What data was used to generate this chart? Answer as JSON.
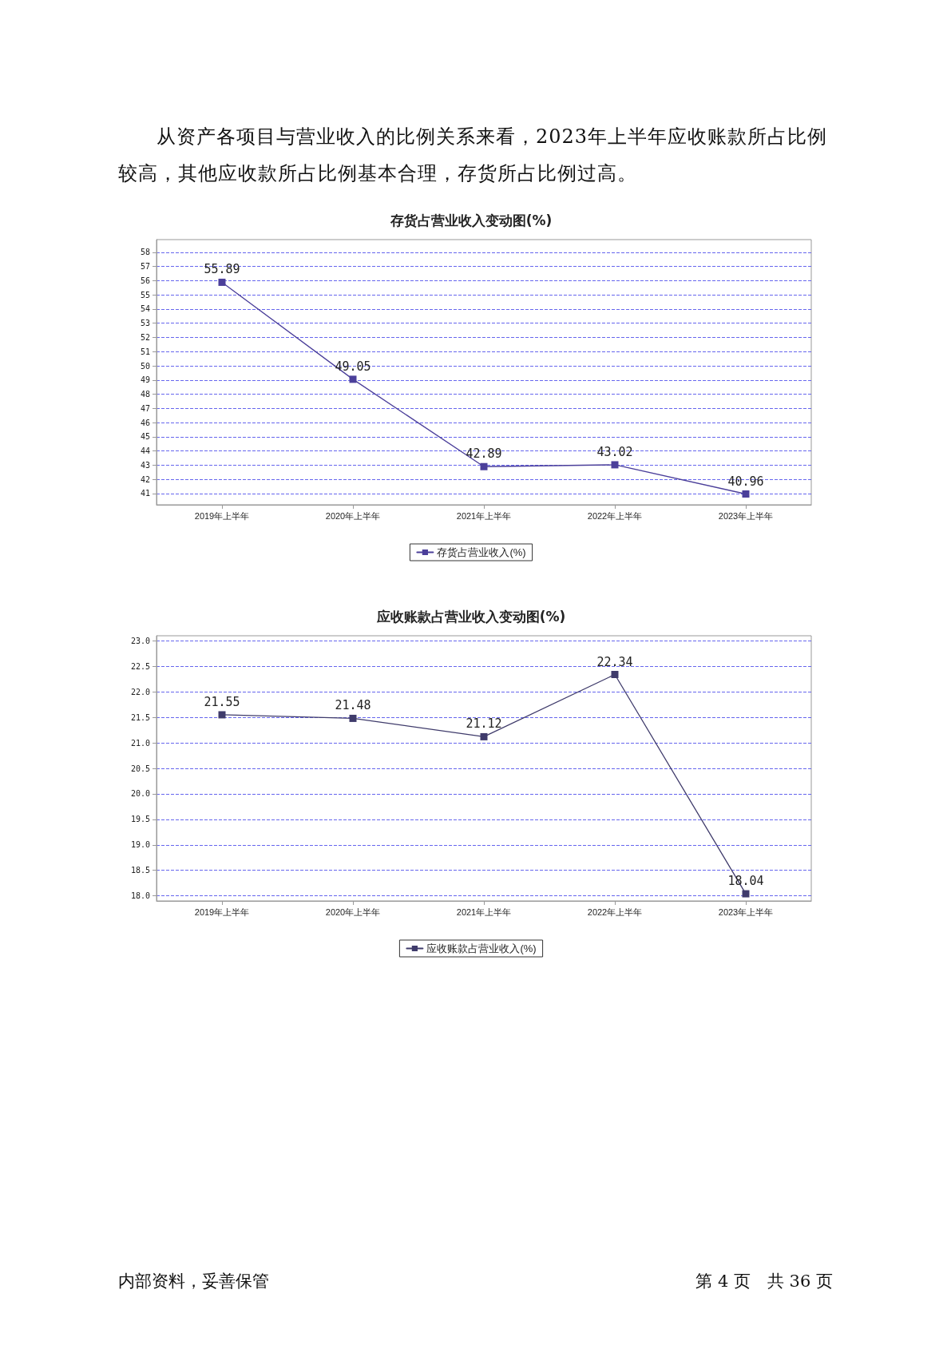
{
  "chart_data": [
    {
      "type": "line",
      "title": "存货占营业收入变动图(%)",
      "categories": [
        "2019年上半年",
        "2020年上半年",
        "2021年上半年",
        "2022年上半年",
        "2023年上半年"
      ],
      "series": [
        {
          "name": "存货占营业收入(%)",
          "color": "#4b3f9a",
          "values": [
            55.89,
            49.05,
            42.89,
            43.02,
            40.96
          ]
        }
      ],
      "ylim": [
        40.2,
        58.9
      ],
      "yticks": [
        41,
        42,
        43,
        44,
        45,
        46,
        47,
        48,
        49,
        50,
        51,
        52,
        53,
        54,
        55,
        56,
        57,
        58
      ],
      "grid": "y",
      "legend": "bottom",
      "marker": "square",
      "line_style": "solid",
      "data_labels": true,
      "annotations": [
        "从资产各项目与营业收入的比例关系来看，2023年上半年应收账款所占比例较高，其他应收款所占比例基本合理，存货所占比例过高。"
      ]
    },
    {
      "type": "line",
      "title": "应收账款占营业收入变动图(%)",
      "categories": [
        "2019年上半年",
        "2020年上半年",
        "2021年上半年",
        "2022年上半年",
        "2023年上半年"
      ],
      "series": [
        {
          "name": "应收账款占营业收入(%)",
          "color": "#3f3b6b",
          "values": [
            21.55,
            21.48,
            21.12,
            22.34,
            18.04
          ]
        }
      ],
      "ylim": [
        17.9,
        23.1
      ],
      "yticks": [
        {
          "value": 18,
          "label": "18.0"
        },
        {
          "value": 18.5,
          "label": "18.5"
        },
        {
          "value": 19,
          "label": "19.0"
        },
        {
          "value": 19.5,
          "label": "19.5"
        },
        {
          "value": 20,
          "label": "20.0"
        },
        {
          "value": 20.5,
          "label": "20.5"
        },
        {
          "value": 21,
          "label": "21.0"
        },
        {
          "value": 21.5,
          "label": "21.5"
        },
        {
          "value": 22,
          "label": "22.0"
        },
        {
          "value": 22.5,
          "label": "22.5"
        },
        {
          "value": 23,
          "label": "23.0"
        }
      ],
      "grid": "y",
      "legend": "bottom",
      "marker": "square",
      "line_style": "solid",
      "data_labels": true,
      "annotations": [
        "内部资料，妥善保管",
        "第 4 页　共 36 页"
      ]
    }
  ]
}
